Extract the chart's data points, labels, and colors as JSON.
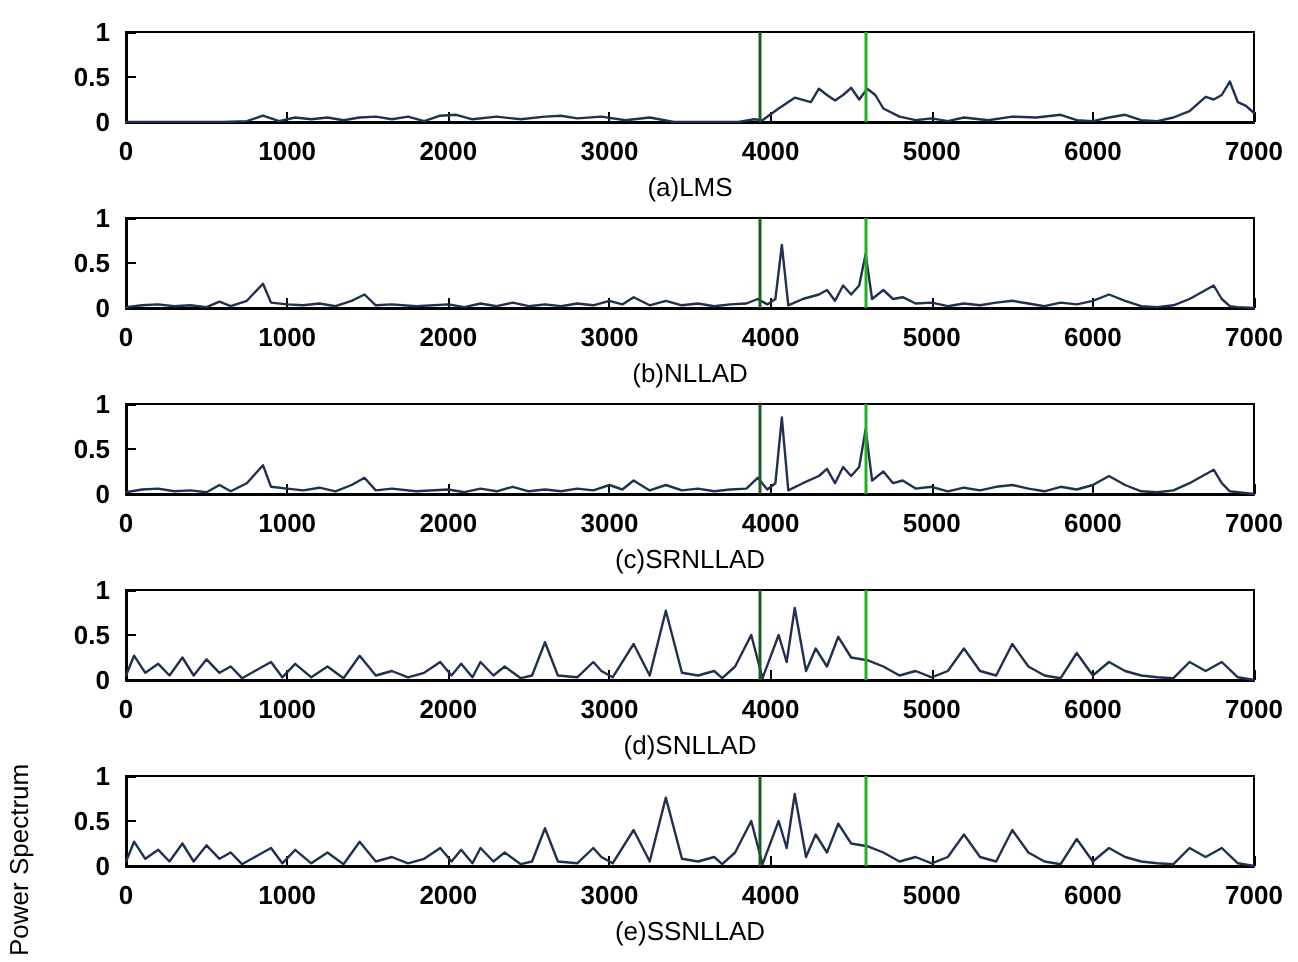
{
  "chart_data": [
    {
      "type": "line",
      "xlabel": "(a)LMS",
      "marker": "none",
      "grid": false,
      "xlim": [
        0,
        7000
      ],
      "xticks": [
        0,
        1000,
        2000,
        3000,
        4000,
        5000,
        6000,
        7000
      ],
      "ylim": [
        0,
        1
      ],
      "yticks": [
        0,
        0.5,
        1
      ],
      "ref_lines": [
        {
          "axis": "x",
          "value": 3930,
          "color": "#1f5a1f"
        },
        {
          "axis": "x",
          "value": 4590,
          "color": "#22b022"
        }
      ],
      "series": [
        {
          "color": "#1f3050",
          "x": [
            0,
            200,
            400,
            600,
            750,
            850,
            950,
            1050,
            1150,
            1250,
            1350,
            1450,
            1550,
            1650,
            1750,
            1850,
            1950,
            2050,
            2150,
            2300,
            2450,
            2600,
            2700,
            2800,
            2950,
            3100,
            3250,
            3400,
            3600,
            3800,
            3900,
            3950,
            4050,
            4150,
            4250,
            4300,
            4350,
            4400,
            4450,
            4500,
            4550,
            4600,
            4650,
            4700,
            4800,
            4900,
            5000,
            5100,
            5200,
            5350,
            5500,
            5650,
            5800,
            5900,
            6000,
            6100,
            6200,
            6300,
            6400,
            6500,
            6600,
            6700,
            6750,
            6800,
            6850,
            6900,
            6950,
            7000
          ],
          "values": [
            0,
            0,
            0,
            0,
            0.01,
            0.07,
            0.01,
            0.05,
            0.03,
            0.05,
            0.02,
            0.05,
            0.06,
            0.03,
            0.06,
            0.01,
            0.07,
            0.08,
            0.03,
            0.06,
            0.03,
            0.06,
            0.07,
            0.04,
            0.06,
            0.02,
            0.05,
            0,
            0,
            0,
            0.03,
            0.02,
            0.15,
            0.27,
            0.22,
            0.37,
            0.3,
            0.24,
            0.3,
            0.38,
            0.25,
            0.37,
            0.3,
            0.15,
            0.06,
            0.02,
            0.04,
            0.01,
            0.05,
            0.02,
            0.06,
            0.05,
            0.08,
            0.02,
            0.01,
            0.05,
            0.08,
            0.02,
            0.01,
            0.05,
            0.12,
            0.28,
            0.25,
            0.3,
            0.45,
            0.22,
            0.18,
            0.1
          ]
        }
      ]
    },
    {
      "type": "line",
      "xlabel": "(b)NLLAD",
      "marker": "none",
      "grid": false,
      "xlim": [
        0,
        7000
      ],
      "xticks": [
        0,
        1000,
        2000,
        3000,
        4000,
        5000,
        6000,
        7000
      ],
      "ylim": [
        0,
        1
      ],
      "yticks": [
        0,
        0.5,
        1
      ],
      "ref_lines": [
        {
          "axis": "x",
          "value": 3930,
          "color": "#1f5a1f"
        },
        {
          "axis": "x",
          "value": 4590,
          "color": "#22b022"
        }
      ],
      "series": [
        {
          "color": "#1f3050",
          "x": [
            0,
            100,
            200,
            300,
            400,
            500,
            580,
            650,
            750,
            850,
            900,
            1000,
            1100,
            1200,
            1300,
            1400,
            1480,
            1550,
            1650,
            1800,
            2000,
            2100,
            2200,
            2300,
            2400,
            2500,
            2600,
            2700,
            2800,
            2900,
            3000,
            3080,
            3150,
            3250,
            3350,
            3450,
            3550,
            3650,
            3750,
            3850,
            3920,
            3980,
            4030,
            4070,
            4110,
            4200,
            4300,
            4350,
            4400,
            4450,
            4500,
            4550,
            4590,
            4630,
            4700,
            4760,
            4820,
            4900,
            5000,
            5100,
            5200,
            5300,
            5400,
            5500,
            5600,
            5700,
            5800,
            5900,
            6000,
            6100,
            6200,
            6300,
            6400,
            6500,
            6600,
            6700,
            6750,
            6800,
            6850,
            6900,
            7000
          ],
          "values": [
            0.01,
            0.03,
            0.04,
            0.02,
            0.03,
            0.01,
            0.07,
            0.02,
            0.08,
            0.27,
            0.06,
            0.04,
            0.03,
            0.05,
            0.02,
            0.08,
            0.15,
            0.03,
            0.04,
            0.02,
            0.04,
            0.01,
            0.05,
            0.02,
            0.06,
            0.02,
            0.04,
            0.02,
            0.05,
            0.03,
            0.08,
            0.04,
            0.12,
            0.03,
            0.08,
            0.03,
            0.05,
            0.02,
            0.04,
            0.05,
            0.1,
            0.04,
            0.1,
            0.7,
            0.03,
            0.1,
            0.15,
            0.2,
            0.08,
            0.25,
            0.15,
            0.25,
            0.6,
            0.1,
            0.2,
            0.1,
            0.12,
            0.05,
            0.06,
            0.02,
            0.05,
            0.03,
            0.06,
            0.08,
            0.05,
            0.02,
            0.06,
            0.04,
            0.08,
            0.15,
            0.08,
            0.02,
            0.01,
            0.03,
            0.1,
            0.2,
            0.25,
            0.1,
            0.02,
            0.01,
            0
          ]
        }
      ]
    },
    {
      "type": "line",
      "xlabel": "(c)SRNLLAD",
      "marker": "none",
      "grid": false,
      "xlim": [
        0,
        7000
      ],
      "xticks": [
        0,
        1000,
        2000,
        3000,
        4000,
        5000,
        6000,
        7000
      ],
      "ylim": [
        0,
        1
      ],
      "yticks": [
        0,
        0.5,
        1
      ],
      "ref_lines": [
        {
          "axis": "x",
          "value": 3930,
          "color": "#1f5a1f"
        },
        {
          "axis": "x",
          "value": 4590,
          "color": "#22b022"
        }
      ],
      "series": [
        {
          "color": "#1f3050",
          "x": [
            0,
            100,
            200,
            300,
            400,
            500,
            580,
            650,
            750,
            850,
            900,
            1000,
            1100,
            1200,
            1300,
            1400,
            1480,
            1550,
            1650,
            1800,
            2000,
            2100,
            2200,
            2300,
            2400,
            2500,
            2600,
            2700,
            2800,
            2900,
            3000,
            3080,
            3150,
            3250,
            3350,
            3450,
            3550,
            3650,
            3750,
            3850,
            3920,
            3980,
            4030,
            4070,
            4110,
            4200,
            4300,
            4350,
            4400,
            4450,
            4500,
            4550,
            4590,
            4630,
            4700,
            4760,
            4820,
            4900,
            5000,
            5100,
            5200,
            5300,
            5400,
            5500,
            5600,
            5700,
            5800,
            5900,
            6000,
            6100,
            6200,
            6300,
            6400,
            6500,
            6600,
            6700,
            6750,
            6800,
            6850,
            6900,
            7000
          ],
          "values": [
            0.02,
            0.05,
            0.06,
            0.03,
            0.04,
            0.02,
            0.1,
            0.03,
            0.12,
            0.32,
            0.08,
            0.06,
            0.04,
            0.07,
            0.03,
            0.1,
            0.18,
            0.04,
            0.06,
            0.03,
            0.05,
            0.02,
            0.06,
            0.03,
            0.08,
            0.03,
            0.05,
            0.03,
            0.06,
            0.04,
            0.1,
            0.05,
            0.15,
            0.04,
            0.1,
            0.04,
            0.06,
            0.03,
            0.05,
            0.06,
            0.18,
            0.05,
            0.12,
            0.85,
            0.04,
            0.12,
            0.2,
            0.28,
            0.12,
            0.3,
            0.2,
            0.3,
            0.72,
            0.15,
            0.25,
            0.12,
            0.15,
            0.06,
            0.08,
            0.03,
            0.07,
            0.04,
            0.08,
            0.1,
            0.06,
            0.03,
            0.08,
            0.05,
            0.1,
            0.2,
            0.1,
            0.03,
            0.02,
            0.04,
            0.12,
            0.22,
            0.27,
            0.12,
            0.03,
            0.02,
            0
          ]
        }
      ]
    },
    {
      "type": "line",
      "xlabel": "(d)SNLLAD",
      "marker": "none",
      "grid": false,
      "xlim": [
        0,
        7000
      ],
      "xticks": [
        0,
        1000,
        2000,
        3000,
        4000,
        5000,
        6000,
        7000
      ],
      "ylim": [
        0,
        1
      ],
      "yticks": [
        0,
        0.5,
        1
      ],
      "ref_lines": [
        {
          "axis": "x",
          "value": 3930,
          "color": "#1f5a1f"
        },
        {
          "axis": "x",
          "value": 4590,
          "color": "#22b022"
        }
      ],
      "series": [
        {
          "color": "#1f3050",
          "x": [
            0,
            50,
            120,
            200,
            270,
            350,
            420,
            500,
            580,
            650,
            720,
            800,
            900,
            970,
            1050,
            1150,
            1250,
            1350,
            1450,
            1550,
            1650,
            1750,
            1850,
            1950,
            2020,
            2080,
            2150,
            2200,
            2280,
            2350,
            2450,
            2520,
            2600,
            2680,
            2800,
            2900,
            2950,
            3020,
            3150,
            3250,
            3350,
            3450,
            3550,
            3650,
            3700,
            3780,
            3880,
            3950,
            4050,
            4100,
            4150,
            4220,
            4280,
            4350,
            4420,
            4500,
            4600,
            4700,
            4800,
            4900,
            5000,
            5100,
            5200,
            5300,
            5400,
            5500,
            5600,
            5700,
            5800,
            5900,
            6000,
            6100,
            6200,
            6300,
            6400,
            6500,
            6600,
            6700,
            6800,
            6900,
            7000
          ],
          "values": [
            0.05,
            0.27,
            0.08,
            0.18,
            0.05,
            0.25,
            0.05,
            0.23,
            0.08,
            0.15,
            0.02,
            0.1,
            0.2,
            0.03,
            0.18,
            0.03,
            0.15,
            0.02,
            0.27,
            0.05,
            0.1,
            0.03,
            0.08,
            0.2,
            0.05,
            0.18,
            0.03,
            0.2,
            0.05,
            0.15,
            0.02,
            0.05,
            0.42,
            0.05,
            0.03,
            0.2,
            0.1,
            0.03,
            0.4,
            0.05,
            0.77,
            0.08,
            0.05,
            0.1,
            0.02,
            0.15,
            0.5,
            0.02,
            0.5,
            0.2,
            0.8,
            0.1,
            0.35,
            0.15,
            0.48,
            0.25,
            0.22,
            0.15,
            0.05,
            0.1,
            0.03,
            0.1,
            0.35,
            0.1,
            0.05,
            0.4,
            0.15,
            0.05,
            0.02,
            0.3,
            0.05,
            0.2,
            0.1,
            0.05,
            0.03,
            0.02,
            0.2,
            0.1,
            0.2,
            0.03,
            0
          ]
        }
      ]
    },
    {
      "type": "line",
      "xlabel": "(e)SSNLLAD",
      "ylabel": "Power Spectrum",
      "marker": "none",
      "grid": false,
      "xlim": [
        0,
        7000
      ],
      "xticks": [
        0,
        1000,
        2000,
        3000,
        4000,
        5000,
        6000,
        7000
      ],
      "ylim": [
        0,
        1
      ],
      "yticks": [
        0,
        0.5,
        1
      ],
      "ref_lines": [
        {
          "axis": "x",
          "value": 3930,
          "color": "#1f5a1f"
        },
        {
          "axis": "x",
          "value": 4590,
          "color": "#22b022"
        }
      ],
      "series": [
        {
          "color": "#1f3050",
          "x": [
            0,
            50,
            120,
            200,
            270,
            350,
            420,
            500,
            580,
            650,
            720,
            800,
            900,
            970,
            1050,
            1150,
            1250,
            1350,
            1450,
            1550,
            1650,
            1750,
            1850,
            1950,
            2020,
            2080,
            2150,
            2200,
            2280,
            2350,
            2450,
            2520,
            2600,
            2680,
            2800,
            2900,
            2950,
            3020,
            3150,
            3250,
            3350,
            3450,
            3550,
            3650,
            3700,
            3780,
            3880,
            3950,
            4050,
            4100,
            4150,
            4220,
            4280,
            4350,
            4420,
            4500,
            4600,
            4700,
            4800,
            4900,
            5000,
            5100,
            5200,
            5300,
            5400,
            5500,
            5600,
            5700,
            5800,
            5900,
            6000,
            6100,
            6200,
            6300,
            6400,
            6500,
            6600,
            6700,
            6800,
            6900,
            7000
          ],
          "values": [
            0.05,
            0.27,
            0.08,
            0.18,
            0.05,
            0.25,
            0.05,
            0.23,
            0.08,
            0.15,
            0.02,
            0.1,
            0.2,
            0.03,
            0.18,
            0.03,
            0.15,
            0.02,
            0.27,
            0.05,
            0.1,
            0.03,
            0.08,
            0.2,
            0.05,
            0.18,
            0.03,
            0.2,
            0.05,
            0.15,
            0.02,
            0.05,
            0.42,
            0.05,
            0.03,
            0.2,
            0.1,
            0.03,
            0.4,
            0.05,
            0.76,
            0.08,
            0.05,
            0.1,
            0.02,
            0.15,
            0.5,
            0.02,
            0.5,
            0.2,
            0.8,
            0.1,
            0.35,
            0.15,
            0.47,
            0.25,
            0.22,
            0.15,
            0.05,
            0.1,
            0.03,
            0.1,
            0.35,
            0.1,
            0.05,
            0.4,
            0.15,
            0.05,
            0.02,
            0.3,
            0.05,
            0.2,
            0.1,
            0.05,
            0.03,
            0.02,
            0.2,
            0.1,
            0.2,
            0.03,
            0
          ]
        }
      ]
    }
  ]
}
